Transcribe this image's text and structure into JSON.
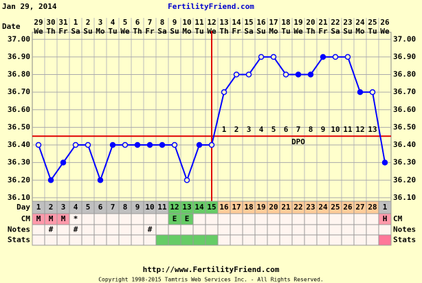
{
  "date": "Jan 29, 2014",
  "site": "FertilityFriend.com",
  "url": "http://www.FertilityFriend.com",
  "copyright": "Copyright 1998-2015 Tamtris Web Services Inc. - All Rights Reserved.",
  "chart_data": {
    "type": "line",
    "x_label": "Date",
    "categories": [
      "29",
      "30",
      "31",
      "1",
      "2",
      "3",
      "4",
      "5",
      "6",
      "7",
      "8",
      "9",
      "10",
      "11",
      "12",
      "13",
      "14",
      "15",
      "16",
      "17",
      "18",
      "19",
      "20",
      "21",
      "22",
      "23",
      "24",
      "25",
      "26"
    ],
    "weekdays": [
      "We",
      "Th",
      "Fr",
      "Sa",
      "Su",
      "Mo",
      "Tu",
      "We",
      "Th",
      "Fr",
      "Sa",
      "Su",
      "Mo",
      "Tu",
      "We",
      "Th",
      "Fr",
      "Sa",
      "Su",
      "Mo",
      "Tu",
      "We",
      "Th",
      "Fr",
      "Sa",
      "Su",
      "Mo",
      "Tu",
      "We"
    ],
    "series": [
      {
        "color": "#0000ff",
        "values": [
          36.4,
          36.2,
          36.3,
          36.4,
          36.4,
          36.2,
          36.4,
          36.4,
          36.4,
          36.4,
          36.4,
          36.4,
          36.2,
          36.4,
          36.4,
          36.7,
          36.8,
          36.8,
          36.9,
          36.9,
          36.8,
          36.8,
          36.8,
          36.9,
          36.9,
          36.9,
          36.7,
          36.7,
          36.3
        ],
        "open": [
          true,
          false,
          false,
          true,
          true,
          false,
          false,
          true,
          false,
          false,
          false,
          true,
          true,
          false,
          true,
          true,
          true,
          true,
          true,
          true,
          true,
          false,
          false,
          false,
          true,
          true,
          false,
          true,
          false
        ]
      }
    ],
    "ylim": [
      36.08,
      37.04
    ],
    "yticks": [
      {
        "value": 37.0,
        "label": "37.00"
      },
      {
        "value": 36.9,
        "label": "36.90"
      },
      {
        "value": 36.8,
        "label": "36.80"
      },
      {
        "value": 36.7,
        "label": "36.70"
      },
      {
        "value": 36.6,
        "label": "36.60"
      },
      {
        "value": 36.5,
        "label": "36.50"
      },
      {
        "value": 36.4,
        "label": "36.40"
      },
      {
        "value": 36.3,
        "label": "36.30"
      },
      {
        "value": 36.2,
        "label": "36.20"
      },
      {
        "value": 36.1,
        "label": "36.10"
      }
    ],
    "grid": true,
    "coverline": 36.45,
    "coverline_color": "#e00000",
    "dpo": [
      null,
      null,
      null,
      null,
      null,
      null,
      null,
      null,
      null,
      null,
      null,
      null,
      null,
      null,
      null,
      "1",
      "2",
      "3",
      "4",
      "5",
      "6",
      "7",
      "8",
      "9",
      "10",
      "11",
      "12",
      "13",
      null
    ],
    "dpo_label": "DPO",
    "rows": [
      {
        "label": "Day",
        "cells": [
          "1",
          "2",
          "3",
          "4",
          "5",
          "6",
          "7",
          "8",
          "9",
          "10",
          "11",
          "12",
          "13",
          "14",
          "15",
          "16",
          "17",
          "18",
          "19",
          "20",
          "21",
          "22",
          "23",
          "24",
          "25",
          "26",
          "27",
          "28",
          "1"
        ],
        "colors": [
          "#c0c0c0",
          "#c0c0c0",
          "#c0c0c0",
          "#c0c0c0",
          "#c0c0c0",
          "#c0c0c0",
          "#c0c0c0",
          "#c0c0c0",
          "#c0c0c0",
          "#c0c0c0",
          "#c0c0c0",
          "#66cc66",
          "#66cc66",
          "#66cc66",
          "#66cc66",
          "#ffcc99",
          "#ffcc99",
          "#ffcc99",
          "#ffcc99",
          "#ffcc99",
          "#ffcc99",
          "#ffcc99",
          "#ffcc99",
          "#ffcc99",
          "#ffcc99",
          "#ffcc99",
          "#ffcc99",
          "#ffcc99",
          "#c0c0c0"
        ]
      },
      {
        "label": "CM",
        "right_label": "CM",
        "cells": [
          "M",
          "M",
          "M",
          "*",
          null,
          null,
          null,
          null,
          null,
          null,
          null,
          "E",
          "E",
          null,
          null,
          null,
          null,
          null,
          null,
          null,
          null,
          null,
          null,
          null,
          null,
          null,
          null,
          null,
          "H"
        ],
        "colors": [
          "#ff99aa",
          "#ff99aa",
          "#ff99aa",
          "#fff5f0",
          "#fff5f0",
          "#fff5f0",
          "#fff5f0",
          "#fff5f0",
          "#fff5f0",
          "#fff5f0",
          "#fff5f0",
          "#66cc66",
          "#66cc66",
          "#fff5f0",
          "#fff5f0",
          "#fff5f0",
          "#fff5f0",
          "#fff5f0",
          "#fff5f0",
          "#fff5f0",
          "#fff5f0",
          "#fff5f0",
          "#fff5f0",
          "#fff5f0",
          "#fff5f0",
          "#fff5f0",
          "#fff5f0",
          "#fff5f0",
          "#ff99aa"
        ]
      },
      {
        "label": "Notes",
        "right_label": "Notes",
        "cells": [
          null,
          "#",
          null,
          "#",
          null,
          null,
          null,
          null,
          null,
          "#",
          null,
          null,
          null,
          null,
          null,
          null,
          null,
          null,
          null,
          null,
          null,
          null,
          null,
          null,
          null,
          null,
          null,
          null,
          null
        ],
        "color": "#fff5f0"
      },
      {
        "label": "Stats",
        "right_label": "Stats",
        "colors": [
          "#fff5f0",
          "#fff5f0",
          "#fff5f0",
          "#fff5f0",
          "#fff5f0",
          "#fff5f0",
          "#fff5f0",
          "#fff5f0",
          "#fff5f0",
          "#fff5f0",
          "#66cc66",
          "#66cc66",
          "#66cc66",
          "#66cc66",
          "#66cc66",
          "#fff5f0",
          "#fff5f0",
          "#fff5f0",
          "#fff5f0",
          "#fff5f0",
          "#fff5f0",
          "#fff5f0",
          "#fff5f0",
          "#fff5f0",
          "#fff5f0",
          "#fff5f0",
          "#fff5f0",
          "#fff5f0",
          "#ff7799"
        ]
      }
    ]
  }
}
